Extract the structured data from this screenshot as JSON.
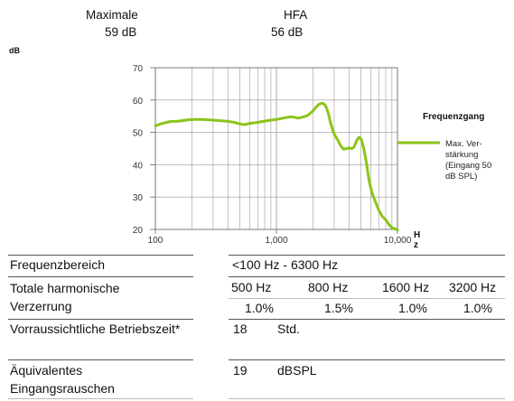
{
  "header": {
    "maximale_label": "Maximale",
    "maximale_value": "59 dB",
    "hfa_label": "HFA",
    "hfa_value": "56 dB"
  },
  "chart_data": {
    "type": "line",
    "ylabel": "dB",
    "xlabel_chars": [
      "H",
      "z"
    ],
    "x_scale": "log",
    "xlim": [
      100,
      10000
    ],
    "ylim": [
      20,
      70
    ],
    "y_ticks": [
      "70",
      "60",
      "50",
      "40",
      "30",
      "20"
    ],
    "x_ticks": [
      "100",
      "1,000",
      "10,000"
    ],
    "grid": true,
    "legend_title": "Frequenzgang",
    "legend_text": [
      "Max. Ver-",
      "stärkung",
      "(Eingang 50",
      "dB SPL)"
    ],
    "line_color": "#8bc41a",
    "series": [
      {
        "name": "Max. Verstärkung (Eingang 50 dB SPL)",
        "x": [
          100,
          110,
          120,
          135,
          150,
          170,
          190,
          210,
          240,
          270,
          300,
          350,
          400,
          450,
          500,
          550,
          600,
          700,
          800,
          900,
          1000,
          1100,
          1200,
          1300,
          1400,
          1500,
          1600,
          1700,
          1800,
          1900,
          2000,
          2100,
          2200,
          2300,
          2400,
          2500,
          2600,
          2700,
          2800,
          2900,
          3000,
          3200,
          3400,
          3600,
          3800,
          4000,
          4200,
          4400,
          4600,
          4800,
          5000,
          5200,
          5400,
          5600,
          5800,
          6000,
          6200,
          6500,
          7000,
          7500,
          8000,
          8500,
          9000,
          9500,
          10000
        ],
        "y": [
          52.0,
          52.6,
          53.0,
          53.4,
          53.4,
          53.7,
          53.9,
          54.0,
          54.0,
          53.9,
          53.8,
          53.6,
          53.4,
          53.1,
          52.6,
          52.4,
          52.8,
          53.1,
          53.5,
          53.8,
          54.0,
          54.3,
          54.6,
          54.8,
          54.7,
          54.4,
          54.6,
          54.9,
          55.2,
          55.9,
          56.6,
          57.6,
          58.4,
          58.9,
          59.0,
          58.7,
          57.5,
          55.5,
          53.0,
          51.0,
          49.5,
          47.8,
          45.8,
          44.8,
          45.0,
          45.2,
          45.0,
          45.6,
          47.5,
          48.5,
          48.0,
          46.0,
          43.0,
          39.5,
          35.5,
          33.0,
          31.0,
          29.0,
          26.0,
          24.0,
          23.0,
          21.5,
          20.5,
          20.2,
          19.8
        ]
      }
    ]
  },
  "table": {
    "freq_range_label": "Frequenzbereich",
    "freq_range_value": "<100 Hz - 6300 Hz",
    "thd_label_line1": "Totale harmonische",
    "thd_label_line2": "Verzerrung",
    "thd_freqs": [
      "500 Hz",
      "800 Hz",
      "1600 Hz",
      "3200 Hz"
    ],
    "thd_values": [
      "1.0%",
      "1.5%",
      "1.0%",
      "1.0%"
    ],
    "battery_label": "Vorraussichtliche Betriebszeit*",
    "battery_value": "18",
    "battery_unit": "Std.",
    "noise_label_line1": "Äquivalentes",
    "noise_label_line2": "Eingangsrauschen",
    "noise_value": "19",
    "noise_unit": "dBSPL"
  }
}
